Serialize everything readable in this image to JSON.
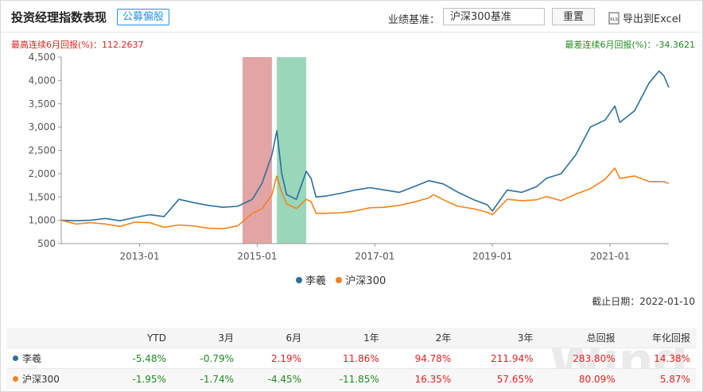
{
  "header": {
    "title": "投资经理指数表现",
    "tag": "公募偏股",
    "benchmark_label": "业绩基准：",
    "benchmark_value": "沪深300基准",
    "reset_label": "重置",
    "export_label": "导出到Excel",
    "export_icon": "xls-icon"
  },
  "stats": {
    "max_run": "最高连续6月回报(%)：112.2637",
    "min_run": "最差连续6月回报(%)：-34.3621"
  },
  "colors": {
    "manager": "#2b6f9c",
    "index": "#f0841f",
    "max_band": "#e09a9a",
    "min_band": "#8fd1b2"
  },
  "chart_data": {
    "type": "line",
    "x_ticks": [
      "2013-01",
      "2015-01",
      "2017-01",
      "2019-01",
      "2021-01"
    ],
    "y_ticks": [
      500,
      1000,
      1500,
      2000,
      2500,
      3000,
      3500,
      4000,
      4500
    ],
    "y_tick_labels": [
      "500",
      "1,000",
      "1,500",
      "2,000",
      "2,500",
      "3,000",
      "3,500",
      "4,000",
      "4,500"
    ],
    "ylim": [
      500,
      4500
    ],
    "xlim": [
      "2011-09",
      "2022-01"
    ],
    "highlight_bands": [
      {
        "kind": "max_6m",
        "from": "2014-10",
        "to": "2015-04"
      },
      {
        "kind": "min_6m",
        "from": "2015-05",
        "to": "2015-11"
      }
    ],
    "series": [
      {
        "name": "李羲",
        "points": [
          [
            "2011-09",
            1000
          ],
          [
            "2011-12",
            990
          ],
          [
            "2012-03",
            1000
          ],
          [
            "2012-06",
            1040
          ],
          [
            "2012-09",
            990
          ],
          [
            "2012-12",
            1060
          ],
          [
            "2013-03",
            1120
          ],
          [
            "2013-06",
            1080
          ],
          [
            "2013-09",
            1450
          ],
          [
            "2013-12",
            1380
          ],
          [
            "2014-03",
            1320
          ],
          [
            "2014-06",
            1280
          ],
          [
            "2014-09",
            1300
          ],
          [
            "2014-12",
            1450
          ],
          [
            "2015-02",
            1800
          ],
          [
            "2015-04",
            2400
          ],
          [
            "2015-05",
            2920
          ],
          [
            "2015-06",
            2000
          ],
          [
            "2015-07",
            1550
          ],
          [
            "2015-09",
            1450
          ],
          [
            "2015-11",
            2050
          ],
          [
            "2015-12",
            1900
          ],
          [
            "2016-01",
            1500
          ],
          [
            "2016-03",
            1520
          ],
          [
            "2016-06",
            1580
          ],
          [
            "2016-09",
            1650
          ],
          [
            "2016-12",
            1700
          ],
          [
            "2017-03",
            1650
          ],
          [
            "2017-06",
            1600
          ],
          [
            "2017-09",
            1720
          ],
          [
            "2017-12",
            1850
          ],
          [
            "2018-03",
            1780
          ],
          [
            "2018-06",
            1600
          ],
          [
            "2018-09",
            1450
          ],
          [
            "2018-12",
            1330
          ],
          [
            "2019-01",
            1200
          ],
          [
            "2019-04",
            1650
          ],
          [
            "2019-07",
            1600
          ],
          [
            "2019-10",
            1720
          ],
          [
            "2019-12",
            1900
          ],
          [
            "2020-03",
            2000
          ],
          [
            "2020-06",
            2400
          ],
          [
            "2020-09",
            3000
          ],
          [
            "2020-12",
            3150
          ],
          [
            "2021-02",
            3450
          ],
          [
            "2021-03",
            3100
          ],
          [
            "2021-06",
            3350
          ],
          [
            "2021-09",
            3950
          ],
          [
            "2021-11",
            4200
          ],
          [
            "2021-12",
            4100
          ],
          [
            "2022-01",
            3850
          ]
        ]
      },
      {
        "name": "沪深300",
        "points": [
          [
            "2011-09",
            1000
          ],
          [
            "2011-12",
            920
          ],
          [
            "2012-03",
            950
          ],
          [
            "2012-06",
            920
          ],
          [
            "2012-09",
            870
          ],
          [
            "2012-12",
            960
          ],
          [
            "2013-03",
            950
          ],
          [
            "2013-06",
            850
          ],
          [
            "2013-09",
            900
          ],
          [
            "2013-12",
            880
          ],
          [
            "2014-03",
            830
          ],
          [
            "2014-06",
            820
          ],
          [
            "2014-09",
            880
          ],
          [
            "2014-12",
            1150
          ],
          [
            "2015-02",
            1250
          ],
          [
            "2015-04",
            1550
          ],
          [
            "2015-05",
            1950
          ],
          [
            "2015-06",
            1600
          ],
          [
            "2015-07",
            1350
          ],
          [
            "2015-09",
            1250
          ],
          [
            "2015-11",
            1450
          ],
          [
            "2015-12",
            1400
          ],
          [
            "2016-01",
            1150
          ],
          [
            "2016-03",
            1150
          ],
          [
            "2016-06",
            1160
          ],
          [
            "2016-09",
            1200
          ],
          [
            "2016-12",
            1270
          ],
          [
            "2017-03",
            1280
          ],
          [
            "2017-06",
            1320
          ],
          [
            "2017-09",
            1390
          ],
          [
            "2017-12",
            1480
          ],
          [
            "2018-01",
            1550
          ],
          [
            "2018-03",
            1440
          ],
          [
            "2018-06",
            1300
          ],
          [
            "2018-09",
            1250
          ],
          [
            "2018-12",
            1170
          ],
          [
            "2019-01",
            1120
          ],
          [
            "2019-04",
            1450
          ],
          [
            "2019-07",
            1420
          ],
          [
            "2019-10",
            1440
          ],
          [
            "2019-12",
            1510
          ],
          [
            "2020-03",
            1420
          ],
          [
            "2020-06",
            1560
          ],
          [
            "2020-09",
            1680
          ],
          [
            "2020-12",
            1880
          ],
          [
            "2021-02",
            2120
          ],
          [
            "2021-03",
            1900
          ],
          [
            "2021-06",
            1950
          ],
          [
            "2021-09",
            1830
          ],
          [
            "2021-12",
            1830
          ],
          [
            "2022-01",
            1790
          ]
        ]
      }
    ],
    "legend": [
      "李羲",
      "沪深300"
    ]
  },
  "deadline": "截止日期：2022-01-10",
  "table": {
    "headers": [
      "",
      "YTD",
      "3月",
      "6月",
      "1年",
      "2年",
      "3年",
      "总回报",
      "年化回报"
    ],
    "rows": [
      {
        "name": "李羲",
        "values": [
          "-5.48%",
          "-0.79%",
          "2.19%",
          "11.86%",
          "94.78%",
          "211.94%",
          "283.80%",
          "14.38%"
        ]
      },
      {
        "name": "沪深300",
        "values": [
          "-1.95%",
          "-1.74%",
          "-4.45%",
          "-11.85%",
          "16.35%",
          "57.65%",
          "80.09%",
          "5.87%"
        ]
      }
    ]
  },
  "watermark": "Wind"
}
